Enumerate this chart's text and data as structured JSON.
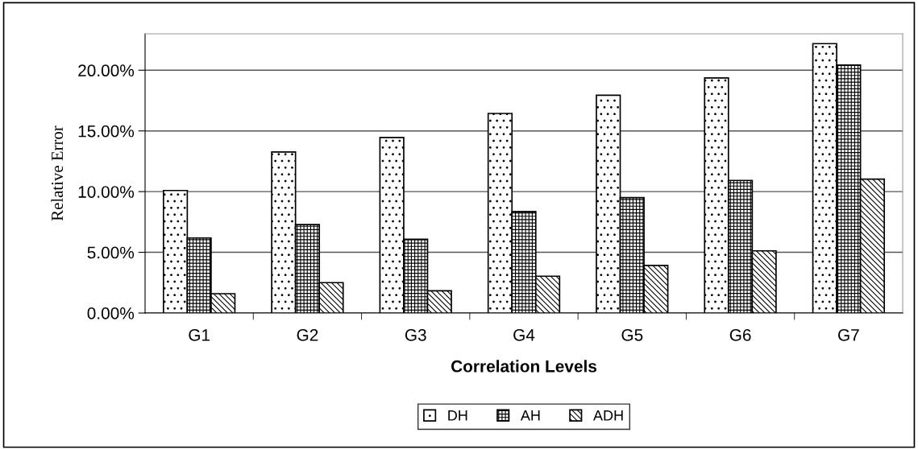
{
  "chart_data": {
    "type": "bar",
    "xlabel": "Correlation Levels",
    "ylabel": "Relative Error",
    "categories": [
      "G1",
      "G2",
      "G3",
      "G4",
      "G5",
      "G6",
      "G7"
    ],
    "series": [
      {
        "name": "DH",
        "color": "#000000",
        "values": [
          10.09,
          13.26,
          14.46,
          16.44,
          17.94,
          19.36,
          22.19
        ]
      },
      {
        "name": "AH",
        "color": "#000000",
        "values": [
          6.18,
          7.28,
          6.07,
          8.36,
          9.5,
          10.92,
          20.42
        ]
      },
      {
        "name": "ADH",
        "color": "#000000",
        "values": [
          1.59,
          2.5,
          1.83,
          3.03,
          3.92,
          5.12,
          11.03
        ]
      }
    ],
    "ylim": [
      0,
      23
    ],
    "yticks": [
      {
        "value": 0,
        "label": "0.00%"
      },
      {
        "value": 5,
        "label": "5.00%"
      },
      {
        "value": 10,
        "label": "10.00%"
      },
      {
        "value": 15,
        "label": "15.00%"
      },
      {
        "value": 20,
        "label": "20.00%"
      }
    ],
    "grid": "y",
    "legend": "bottom"
  }
}
